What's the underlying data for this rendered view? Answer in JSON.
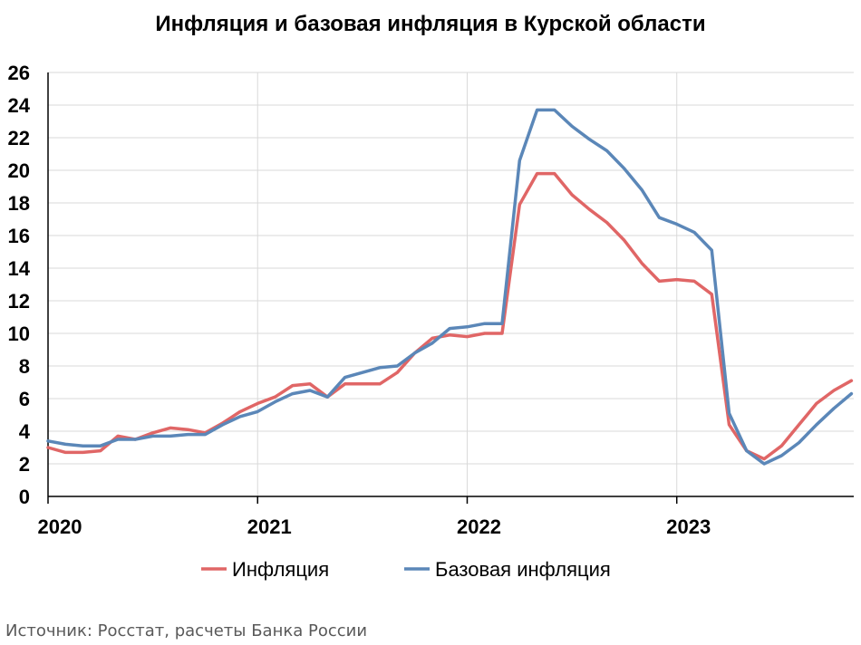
{
  "chart_data": {
    "type": "line",
    "title": "Инфляция и базовая инфляция в Курской области",
    "xlabel": "",
    "ylabel": "",
    "x_tick_labels": [
      "2020",
      "2021",
      "2022",
      "2023"
    ],
    "ylim": [
      0,
      26
    ],
    "y_ticks": [
      0,
      2,
      4,
      6,
      8,
      10,
      12,
      14,
      16,
      18,
      20,
      22,
      24,
      26
    ],
    "grid": true,
    "legend_position": "bottom",
    "x_start": "2020-01",
    "x_end": "2023-10",
    "series": [
      {
        "name": "Инфляция",
        "color": "#E06666",
        "values": [
          3.0,
          2.7,
          2.7,
          2.8,
          3.7,
          3.5,
          3.9,
          4.2,
          4.1,
          3.9,
          4.5,
          5.2,
          5.7,
          6.1,
          6.8,
          6.9,
          6.1,
          6.9,
          6.9,
          6.9,
          7.6,
          8.8,
          9.7,
          9.9,
          9.8,
          10.0,
          10.0,
          17.9,
          19.8,
          19.8,
          18.5,
          17.6,
          16.8,
          15.7,
          14.3,
          13.2,
          13.3,
          13.2,
          12.4,
          4.4,
          2.8,
          2.3,
          3.1,
          4.4,
          5.7,
          6.5,
          7.1
        ]
      },
      {
        "name": "Базовая инфляция",
        "color": "#5B87B8",
        "values": [
          3.4,
          3.2,
          3.1,
          3.1,
          3.5,
          3.5,
          3.7,
          3.7,
          3.8,
          3.8,
          4.4,
          4.9,
          5.2,
          5.8,
          6.3,
          6.5,
          6.1,
          7.3,
          7.6,
          7.9,
          8.0,
          8.8,
          9.4,
          10.3,
          10.4,
          10.6,
          10.6,
          20.6,
          23.7,
          23.7,
          22.7,
          21.9,
          21.2,
          20.1,
          18.8,
          17.1,
          16.7,
          16.2,
          15.1,
          5.1,
          2.8,
          2.0,
          2.5,
          3.3,
          4.4,
          5.4,
          6.3
        ]
      }
    ]
  },
  "source_text": "Источник: Росстат, расчеты Банка России"
}
